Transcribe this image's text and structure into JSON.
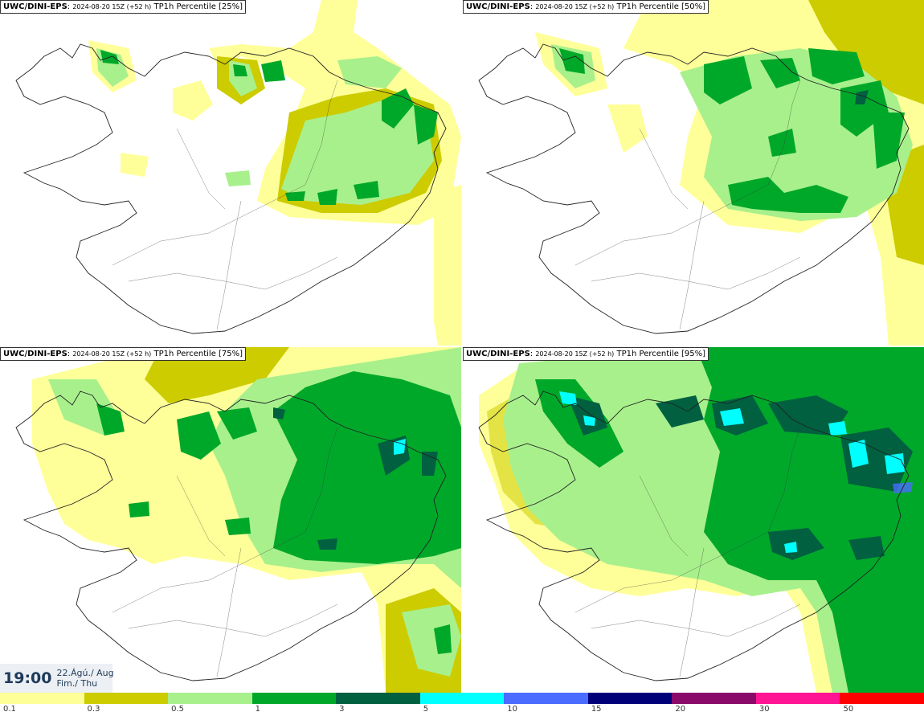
{
  "panels": [
    {
      "model": "UWC/DINI-EPS",
      "run": "2024-08-20 15Z (+52 h)",
      "product": "TP1h Percentile [25%]",
      "level": 1
    },
    {
      "model": "UWC/DINI-EPS",
      "run": "2024-08-20 15Z (+52 h)",
      "product": "TP1h Percentile [50%]",
      "level": 2
    },
    {
      "model": "UWC/DINI-EPS",
      "run": "2024-08-20 15Z (+52 h)",
      "product": "TP1h Percentile [75%]",
      "level": 3
    },
    {
      "model": "UWC/DINI-EPS",
      "run": "2024-08-20 15Z (+52 h)",
      "product": "TP1h Percentile [95%]",
      "level": 4
    }
  ],
  "timebox": {
    "hour": "19:00",
    "date_line": "22.Ágú./ Aug",
    "day_line": "Fim./ Thu"
  },
  "colorbar": {
    "ticks": [
      "0.1",
      "0.3",
      "0.5",
      "1",
      "3",
      "5",
      "10",
      "15",
      "20",
      "30",
      "50"
    ],
    "colors": [
      "#ffff99",
      "#cccc00",
      "#a8f08c",
      "#00a82a",
      "#006040",
      "#00ffff",
      "#4a6cff",
      "#00007a",
      "#8a0a6a",
      "#ff1493",
      "#ff0000"
    ]
  }
}
